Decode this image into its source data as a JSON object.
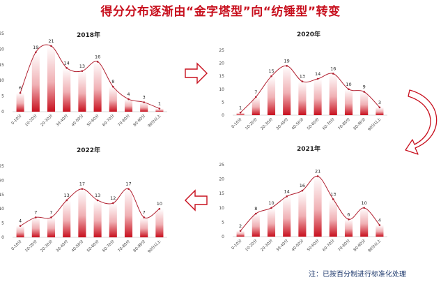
{
  "title": "得分分布逐渐由“金字塔型”向“纺锤型”转变",
  "note": "注：已按百分制进行标准化处理",
  "colors": {
    "accent": "#c8101e",
    "bar_top": "#ffffff",
    "line": "#b22030",
    "arrow": "#c8101e"
  },
  "icons": [
    "arrow-right-icon",
    "arrow-left-icon",
    "curved-arrow-down-icon"
  ],
  "chart_data": [
    {
      "type": "bar",
      "title": "2018年",
      "categories": [
        "0-10分",
        "10-20分",
        "20-30分",
        "30-40分",
        "40-50分",
        "50-60分",
        "60-70分",
        "70-80分",
        "80-90分",
        "90分以上"
      ],
      "values": [
        6,
        19,
        21,
        14,
        13,
        16,
        8,
        4,
        3,
        1
      ],
      "ylim": [
        0,
        25
      ],
      "yticks": [
        0,
        5,
        10,
        15,
        20,
        25
      ],
      "overlay": "smooth-line",
      "grid": false
    },
    {
      "type": "bar",
      "title": "2020年",
      "categories": [
        "0-10分",
        "10-20分",
        "20-30分",
        "30-40分",
        "40-50分",
        "50-60分",
        "60-70分",
        "70-80分",
        "80-90分",
        "90分以上"
      ],
      "values": [
        1,
        7,
        15,
        19,
        13,
        14,
        16,
        10,
        9,
        3
      ],
      "ylim": [
        0,
        25
      ],
      "yticks": [
        0,
        5,
        10,
        15,
        20,
        25
      ],
      "overlay": "smooth-line",
      "grid": false
    },
    {
      "type": "bar",
      "title": "2022年",
      "categories": [
        "0-10分",
        "10-20分",
        "20-30分",
        "30-40分",
        "40-50分",
        "50-60分",
        "60-70分",
        "70-80分",
        "80-90分",
        "90分以上"
      ],
      "values": [
        4,
        7,
        7,
        13,
        17,
        13,
        12,
        17,
        7,
        10
      ],
      "ylim": [
        0,
        25
      ],
      "yticks": [
        0,
        5,
        10,
        15,
        20,
        25
      ],
      "overlay": "smooth-line",
      "grid": false
    },
    {
      "type": "bar",
      "title": "2021年",
      "categories": [
        "0-10分",
        "10-20分",
        "20-30分",
        "30-40分",
        "40-50分",
        "50-60分",
        "60-70分",
        "70-80分",
        "80-90分",
        "90分以上"
      ],
      "values": [
        2,
        8,
        10,
        14,
        16,
        21,
        13,
        6,
        10,
        4
      ],
      "ylim": [
        0,
        25
      ],
      "yticks": [
        0,
        5,
        10,
        15,
        20,
        25
      ],
      "overlay": "smooth-line",
      "grid": false
    }
  ]
}
